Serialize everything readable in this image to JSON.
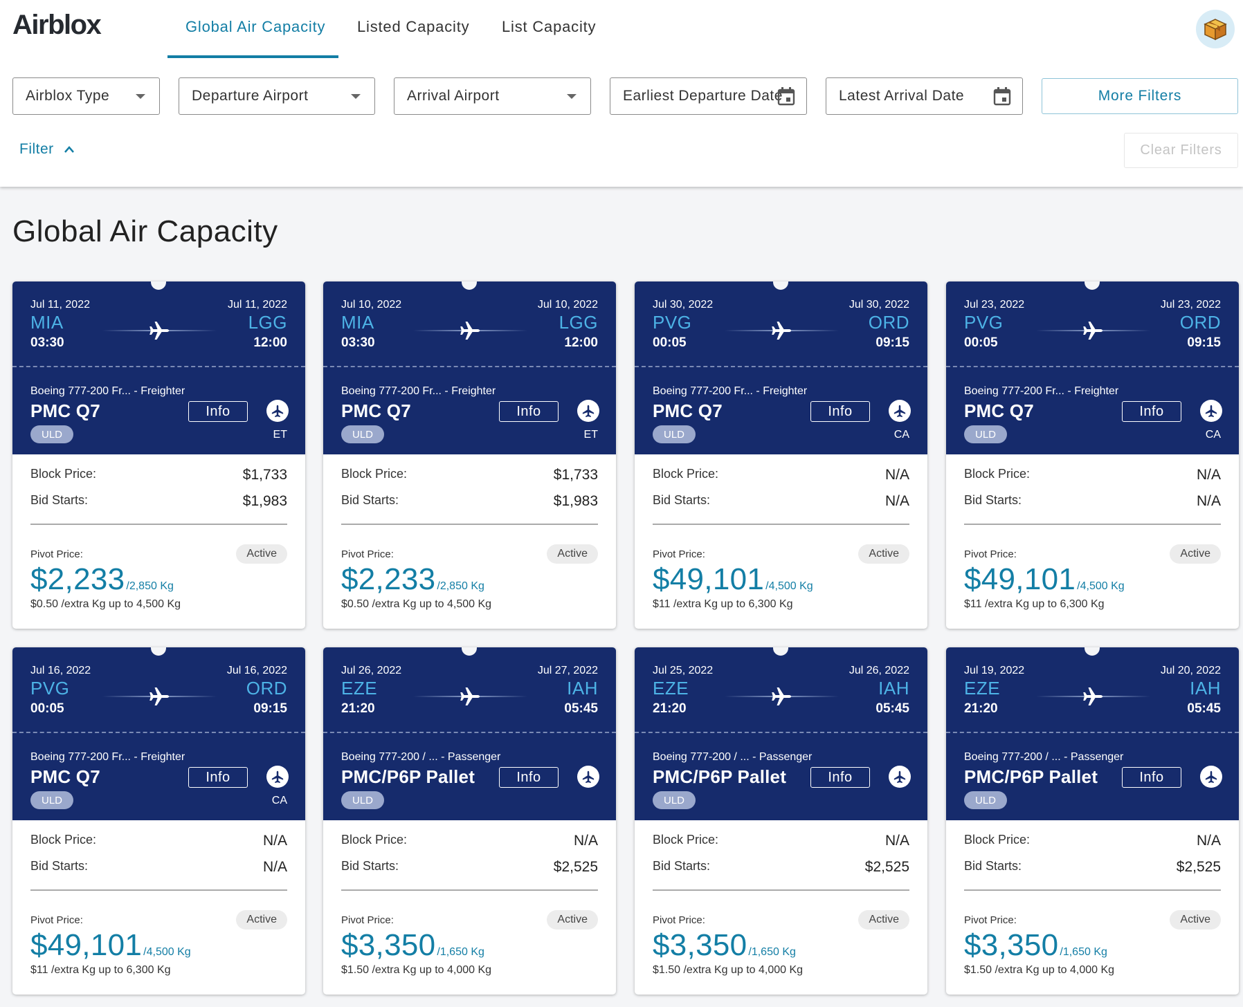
{
  "brand": {
    "logo": "Airblox"
  },
  "nav": {
    "tabs": [
      {
        "label": "Global Air Capacity",
        "active": true
      },
      {
        "label": "Listed Capacity",
        "active": false
      },
      {
        "label": "List Capacity",
        "active": false
      }
    ],
    "avatar_icon": "package-box-icon"
  },
  "filters": {
    "airblox_type": "Airblox Type",
    "departure_airport": "Departure Airport",
    "arrival_airport": "Arrival Airport",
    "earliest_departure": "Earliest Departure Date",
    "latest_arrival": "Latest Arrival Date",
    "more_filters": "More Filters",
    "clear_filters": "Clear Filters",
    "filter_toggle": "Filter"
  },
  "page": {
    "title": "Global Air Capacity"
  },
  "labels": {
    "block_price": "Block Price:",
    "bid_starts": "Bid Starts:",
    "pivot_price": "Pivot Price:",
    "info": "Info",
    "uld": "ULD",
    "active": "Active"
  },
  "colors": {
    "accent": "#137ea5",
    "card_header": "#162b6c",
    "airport_code": "#4db3e6"
  },
  "cards": [
    {
      "dep_date": "Jul 11, 2022",
      "arr_date": "Jul 11, 2022",
      "dep_code": "MIA",
      "arr_code": "LGG",
      "dep_time": "03:30",
      "arr_time": "12:00",
      "aircraft": "Boeing 777-200 Fr... - Freighter",
      "product": "PMC Q7",
      "airline": "ET",
      "block_price": "$1,733",
      "bid_starts": "$1,983",
      "pivot_price": "$2,233",
      "pivot_weight": "/2,850 Kg",
      "extra": "$0.50 /extra Kg up to 4,500 Kg"
    },
    {
      "dep_date": "Jul 10, 2022",
      "arr_date": "Jul 10, 2022",
      "dep_code": "MIA",
      "arr_code": "LGG",
      "dep_time": "03:30",
      "arr_time": "12:00",
      "aircraft": "Boeing 777-200 Fr... - Freighter",
      "product": "PMC Q7",
      "airline": "ET",
      "block_price": "$1,733",
      "bid_starts": "$1,983",
      "pivot_price": "$2,233",
      "pivot_weight": "/2,850 Kg",
      "extra": "$0.50 /extra Kg up to 4,500 Kg"
    },
    {
      "dep_date": "Jul 30, 2022",
      "arr_date": "Jul 30, 2022",
      "dep_code": "PVG",
      "arr_code": "ORD",
      "dep_time": "00:05",
      "arr_time": "09:15",
      "aircraft": "Boeing 777-200 Fr... - Freighter",
      "product": "PMC Q7",
      "airline": "CA",
      "block_price": "N/A",
      "bid_starts": "N/A",
      "pivot_price": "$49,101",
      "pivot_weight": "/4,500 Kg",
      "extra": "$11 /extra Kg up to 6,300 Kg"
    },
    {
      "dep_date": "Jul 23, 2022",
      "arr_date": "Jul 23, 2022",
      "dep_code": "PVG",
      "arr_code": "ORD",
      "dep_time": "00:05",
      "arr_time": "09:15",
      "aircraft": "Boeing 777-200 Fr... - Freighter",
      "product": "PMC Q7",
      "airline": "CA",
      "block_price": "N/A",
      "bid_starts": "N/A",
      "pivot_price": "$49,101",
      "pivot_weight": "/4,500 Kg",
      "extra": "$11 /extra Kg up to 6,300 Kg"
    },
    {
      "dep_date": "Jul 16, 2022",
      "arr_date": "Jul 16, 2022",
      "dep_code": "PVG",
      "arr_code": "ORD",
      "dep_time": "00:05",
      "arr_time": "09:15",
      "aircraft": "Boeing 777-200 Fr... - Freighter",
      "product": "PMC Q7",
      "airline": "CA",
      "block_price": "N/A",
      "bid_starts": "N/A",
      "pivot_price": "$49,101",
      "pivot_weight": "/4,500 Kg",
      "extra": "$11 /extra Kg up to 6,300 Kg"
    },
    {
      "dep_date": "Jul 26, 2022",
      "arr_date": "Jul 27, 2022",
      "dep_code": "EZE",
      "arr_code": "IAH",
      "dep_time": "21:20",
      "arr_time": "05:45",
      "aircraft": "Boeing 777-200 / ... - Passenger",
      "product": "PMC/P6P Pallet",
      "airline": "",
      "block_price": "N/A",
      "bid_starts": "$2,525",
      "pivot_price": "$3,350",
      "pivot_weight": "/1,650 Kg",
      "extra": "$1.50 /extra Kg up to 4,000 Kg"
    },
    {
      "dep_date": "Jul 25, 2022",
      "arr_date": "Jul 26, 2022",
      "dep_code": "EZE",
      "arr_code": "IAH",
      "dep_time": "21:20",
      "arr_time": "05:45",
      "aircraft": "Boeing 777-200 / ... - Passenger",
      "product": "PMC/P6P Pallet",
      "airline": "",
      "block_price": "N/A",
      "bid_starts": "$2,525",
      "pivot_price": "$3,350",
      "pivot_weight": "/1,650 Kg",
      "extra": "$1.50 /extra Kg up to 4,000 Kg"
    },
    {
      "dep_date": "Jul 19, 2022",
      "arr_date": "Jul 20, 2022",
      "dep_code": "EZE",
      "arr_code": "IAH",
      "dep_time": "21:20",
      "arr_time": "05:45",
      "aircraft": "Boeing 777-200 / ... - Passenger",
      "product": "PMC/P6P Pallet",
      "airline": "",
      "block_price": "N/A",
      "bid_starts": "$2,525",
      "pivot_price": "$3,350",
      "pivot_weight": "/1,650 Kg",
      "extra": "$1.50 /extra Kg up to 4,000 Kg"
    }
  ]
}
